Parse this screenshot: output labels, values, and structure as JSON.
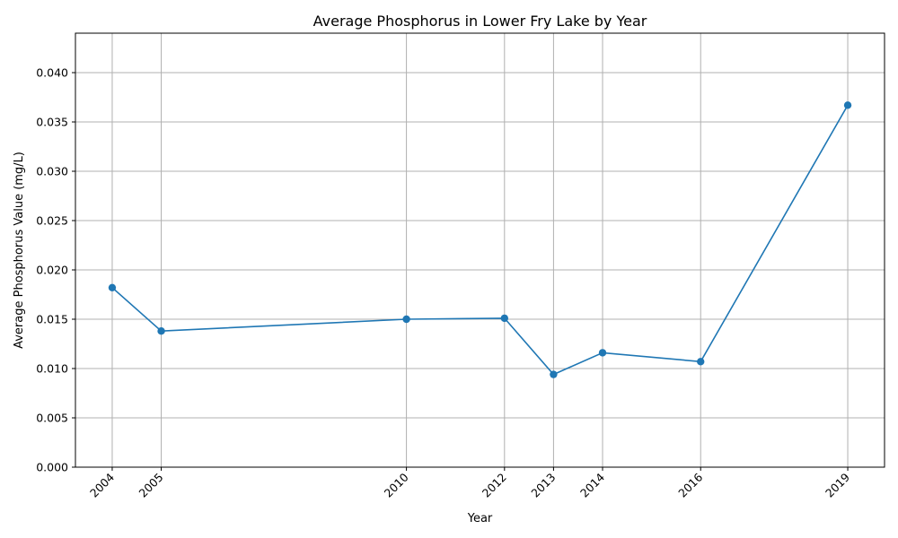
{
  "chart_data": {
    "type": "line",
    "title": "Average Phosphorus in Lower Fry Lake by Year",
    "xlabel": "Year",
    "ylabel": "Average Phosphorus Value (mg/L)",
    "x": [
      2004,
      2005,
      2010,
      2012,
      2013,
      2014,
      2016,
      2019
    ],
    "x_tick_labels": [
      "2004",
      "2005",
      "2010",
      "2012",
      "2013",
      "2014",
      "2016",
      "2019"
    ],
    "xlim": [
      2003.25,
      2019.75
    ],
    "ylim": [
      0,
      0.044
    ],
    "y_ticks": [
      0.0,
      0.005,
      0.01,
      0.015,
      0.02,
      0.025,
      0.03,
      0.035,
      0.04
    ],
    "y_tick_labels": [
      "0.000",
      "0.005",
      "0.010",
      "0.015",
      "0.020",
      "0.025",
      "0.030",
      "0.035",
      "0.040"
    ],
    "series": [
      {
        "values": [
          0.0182,
          0.0138,
          0.015,
          0.0151,
          0.0094,
          0.0116,
          0.0107,
          0.0367
        ],
        "color": "#1f77b4",
        "marker": "circle"
      }
    ],
    "grid": true
  }
}
